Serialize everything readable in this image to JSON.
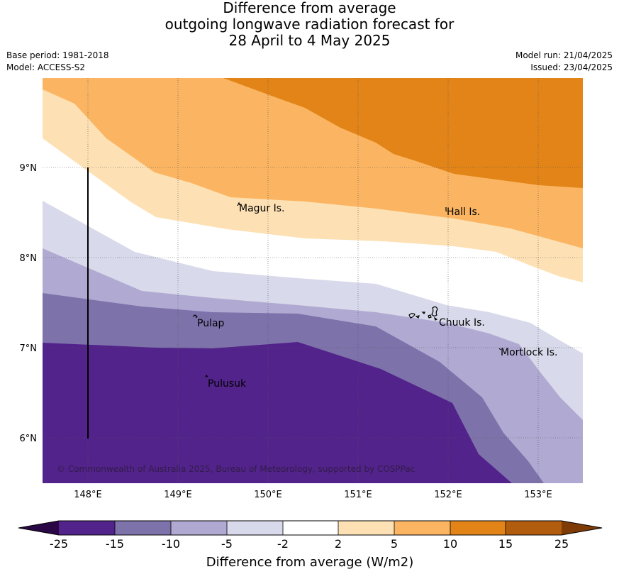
{
  "title": {
    "line1": "Difference from average",
    "line2": "outgoing longwave radiation forecast for",
    "line3": "28 April to 4 May 2025"
  },
  "meta": {
    "base_period": "Base period: 1981-2018",
    "model": "Model: ACCESS-S2",
    "model_run": "Model run: 21/04/2025",
    "issued": "Issued: 23/04/2025"
  },
  "map": {
    "longitude_labels": [
      "148°E",
      "149°E",
      "150°E",
      "151°E",
      "152°E",
      "153°E"
    ],
    "latitude_labels": [
      "9°N",
      "8°N",
      "7°N",
      "6°N"
    ],
    "place_labels": {
      "magur": "Magur Is.",
      "hall": "Hall Is.",
      "pulap": "Pulap",
      "chuuk": "Chuuk Is.",
      "mortlock": "Mortlock Is.",
      "pulusuk": "Pulusuk"
    },
    "copyright": "© Commonwealth of Australia 2025, Bureau of Meteorology, supported by COSPPac"
  },
  "colorbar": {
    "ticks": [
      "-25",
      "-15",
      "-10",
      "-5",
      "-2",
      "2",
      "5",
      "10",
      "15",
      "25"
    ],
    "label": "Difference from average (W/m2)",
    "colors": [
      "#290845",
      "#52238a",
      "#7e72ab",
      "#b0aad2",
      "#d8d9ea",
      "#ffffff",
      "#fde1b4",
      "#fbb562",
      "#e28417",
      "#b25d0e",
      "#7f3b06"
    ]
  }
}
